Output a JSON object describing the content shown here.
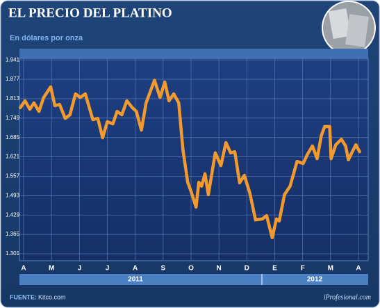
{
  "chart_data": {
    "type": "line",
    "title": "EL PRECIO DEL PLATINO",
    "subtitle": "En dólares por onza",
    "source": "FUENTE:",
    "source_name": "Kitco.com",
    "credit": "iProfesional.com",
    "years": [
      "2011",
      "2012"
    ],
    "xlim": [
      -0.15,
      12.35
    ],
    "xticks": [
      {
        "value": 0,
        "label": "A"
      },
      {
        "value": 1,
        "label": "M"
      },
      {
        "value": 2,
        "label": "J"
      },
      {
        "value": 3,
        "label": "J"
      },
      {
        "value": 4,
        "label": "A"
      },
      {
        "value": 5,
        "label": "S"
      },
      {
        "value": 6,
        "label": "O"
      },
      {
        "value": 7,
        "label": "N"
      },
      {
        "value": 8,
        "label": "D"
      },
      {
        "value": 9,
        "label": "E"
      },
      {
        "value": 10,
        "label": "F"
      },
      {
        "value": 11,
        "label": "M"
      },
      {
        "value": 12,
        "label": "A"
      }
    ],
    "ylim": [
      1278,
      1946
    ],
    "yticks": [
      {
        "value": 1941,
        "label": "1.941"
      },
      {
        "value": 1877,
        "label": "1.877"
      },
      {
        "value": 1813,
        "label": "1.813"
      },
      {
        "value": 1749,
        "label": "1.749"
      },
      {
        "value": 1685,
        "label": "1.685"
      },
      {
        "value": 1621,
        "label": "1.621"
      },
      {
        "value": 1557,
        "label": "1.557"
      },
      {
        "value": 1493,
        "label": "1.493"
      },
      {
        "value": 1429,
        "label": "1.429"
      },
      {
        "value": 1365,
        "label": "1.365"
      },
      {
        "value": 1301,
        "label": "1.301"
      }
    ],
    "grid": true,
    "series": [
      {
        "color": "#f39a2e",
        "x": [
          -0.12,
          0.05,
          0.22,
          0.37,
          0.55,
          0.72,
          0.97,
          1.12,
          1.29,
          1.49,
          1.66,
          1.86,
          2.03,
          2.21,
          2.48,
          2.66,
          2.83,
          3.0,
          3.2,
          3.35,
          3.52,
          3.7,
          3.9,
          4.04,
          4.22,
          4.39,
          4.69,
          4.89,
          5.06,
          5.21,
          5.38,
          5.56,
          5.71,
          5.88,
          6.0,
          6.18,
          6.28,
          6.38,
          6.5,
          6.62,
          6.87,
          7.07,
          7.25,
          7.42,
          7.57,
          7.74,
          7.91,
          8.11,
          8.31,
          8.56,
          8.71,
          8.91,
          9.06,
          9.16,
          9.35,
          9.55,
          9.8,
          10.02,
          10.17,
          10.35,
          10.52,
          10.67,
          10.79,
          10.97,
          11.02,
          11.19,
          11.39,
          11.54,
          11.64,
          11.76,
          11.91,
          12.04
        ],
        "values": [
          1783,
          1806,
          1778,
          1799,
          1771,
          1817,
          1852,
          1790,
          1794,
          1748,
          1760,
          1829,
          1817,
          1829,
          1744,
          1748,
          1684,
          1737,
          1730,
          1771,
          1760,
          1806,
          1783,
          1771,
          1709,
          1799,
          1874,
          1817,
          1868,
          1806,
          1829,
          1799,
          1645,
          1537,
          1507,
          1455,
          1537,
          1524,
          1565,
          1496,
          1634,
          1592,
          1668,
          1634,
          1638,
          1535,
          1560,
          1501,
          1413,
          1416,
          1427,
          1354,
          1416,
          1409,
          1496,
          1524,
          1606,
          1599,
          1629,
          1657,
          1615,
          1691,
          1721,
          1721,
          1615,
          1661,
          1679,
          1657,
          1611,
          1634,
          1661,
          1638
        ]
      }
    ]
  }
}
